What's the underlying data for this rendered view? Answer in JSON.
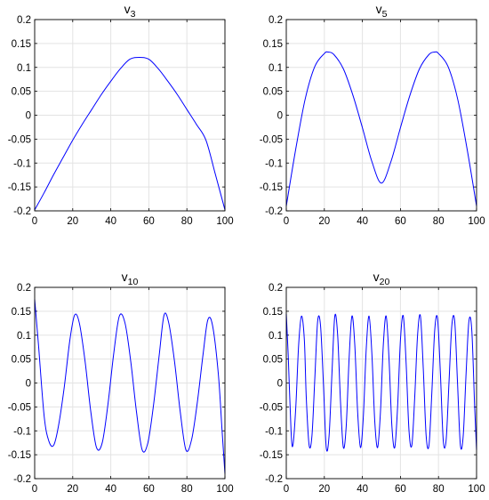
{
  "chart_data": [
    {
      "type": "line",
      "title": "v",
      "title_subscript": "3",
      "xlim": [
        0,
        100
      ],
      "ylim": [
        -0.2,
        0.2
      ],
      "x_ticks": [
        "0",
        "20",
        "40",
        "60",
        "80",
        "100"
      ],
      "y_ticks": [
        "-0.2",
        "-0.15",
        "-0.1",
        "-0.05",
        "0",
        "0.05",
        "0.1",
        "0.15",
        "0.2"
      ],
      "grid": true,
      "line_color": "#0000ff",
      "series": [
        {
          "x": [
            0,
            5,
            10,
            15,
            20,
            25,
            30,
            35,
            40,
            45,
            50,
            55,
            60,
            65,
            70,
            75,
            80,
            85,
            90,
            95,
            100
          ],
          "y": [
            -0.198,
            -0.162,
            -0.124,
            -0.088,
            -0.052,
            -0.019,
            0.012,
            0.043,
            0.071,
            0.097,
            0.117,
            0.121,
            0.117,
            0.097,
            0.071,
            0.043,
            0.012,
            -0.019,
            -0.052,
            -0.124,
            -0.198
          ]
        }
      ]
    },
    {
      "type": "line",
      "title": "v",
      "title_subscript": "5",
      "xlim": [
        0,
        100
      ],
      "ylim": [
        -0.2,
        0.2
      ],
      "x_ticks": [
        "0",
        "20",
        "40",
        "60",
        "80",
        "100"
      ],
      "y_ticks": [
        "-0.2",
        "-0.15",
        "-0.1",
        "-0.05",
        "0",
        "0.05",
        "0.1",
        "0.15",
        "0.2"
      ],
      "grid": true,
      "line_color": "#0000ff",
      "series": [
        {
          "x": [
            0,
            5,
            10,
            15,
            20,
            22,
            25,
            30,
            35,
            40,
            45,
            50,
            55,
            60,
            65,
            70,
            75,
            78,
            80,
            85,
            90,
            95,
            100
          ],
          "y": [
            -0.19,
            -0.07,
            0.035,
            0.102,
            0.129,
            0.132,
            0.127,
            0.097,
            0.042,
            -0.026,
            -0.097,
            -0.142,
            -0.097,
            -0.026,
            0.042,
            0.097,
            0.127,
            0.132,
            0.129,
            0.102,
            0.035,
            -0.07,
            -0.19
          ]
        }
      ]
    },
    {
      "type": "line",
      "title": "v",
      "title_subscript": "10",
      "xlim": [
        0,
        100
      ],
      "ylim": [
        -0.2,
        0.2
      ],
      "x_ticks": [
        "0",
        "20",
        "40",
        "60",
        "80",
        "100"
      ],
      "y_ticks": [
        "-0.2",
        "-0.15",
        "-0.1",
        "-0.05",
        "0",
        "0.05",
        "0.1",
        "0.15",
        "0.2"
      ],
      "grid": true,
      "line_color": "#0000ff",
      "series": [
        {
          "x": [
            0,
            2,
            5,
            7.5,
            10,
            12.5,
            15.5,
            18.5,
            21,
            23.5,
            26.5,
            29.5,
            32.5,
            35.5,
            38.5,
            41.5,
            44.5,
            47.5,
            50.5,
            53.5,
            56.5,
            59.5,
            62.5,
            65.5,
            68,
            70.5,
            73.5,
            76.5,
            79.5,
            82.5,
            85.5,
            88.5,
            91,
            93.5,
            96.5,
            98.5,
            100
          ],
          "y": [
            0.175,
            0.08,
            -0.07,
            -0.122,
            -0.13,
            -0.09,
            -0.01,
            0.09,
            0.142,
            0.125,
            0.045,
            -0.06,
            -0.135,
            -0.125,
            -0.045,
            0.06,
            0.14,
            0.125,
            0.045,
            -0.06,
            -0.14,
            -0.125,
            -0.045,
            0.06,
            0.142,
            0.125,
            0.045,
            -0.06,
            -0.14,
            -0.118,
            -0.04,
            0.06,
            0.132,
            0.12,
            0.02,
            -0.1,
            -0.19
          ]
        }
      ]
    },
    {
      "type": "line",
      "title": "v",
      "title_subscript": "20",
      "xlim": [
        0,
        100
      ],
      "ylim": [
        -0.2,
        0.2
      ],
      "x_ticks": [
        "0",
        "20",
        "40",
        "60",
        "80",
        "100"
      ],
      "y_ticks": [
        "-0.2",
        "-0.15",
        "-0.1",
        "-0.05",
        "0",
        "0.05",
        "0.1",
        "0.15",
        "0.2"
      ],
      "grid": true,
      "line_color": "#0000ff",
      "series": [
        {
          "x": [
            0,
            1,
            2.5,
            3.5,
            5,
            6.5,
            8,
            9.5,
            10.5,
            12,
            13.5,
            15,
            16.5,
            18,
            19.5,
            21,
            22.5,
            24,
            25.5,
            27,
            28.5,
            30,
            31.5,
            33,
            34.5,
            36,
            37.5,
            39,
            40.5,
            42,
            43.5,
            45,
            46.5,
            48,
            49.5,
            51,
            52.5,
            54,
            55.5,
            57,
            58.5,
            60,
            61.5,
            63,
            64.5,
            66,
            67.5,
            69,
            70.5,
            72,
            73.5,
            75,
            76.5,
            78,
            79.5,
            81,
            82.5,
            84,
            85.5,
            87,
            88.5,
            90,
            91.5,
            93,
            94.5,
            96,
            97.5,
            99,
            100
          ],
          "y": [
            0.145,
            0.06,
            -0.1,
            -0.13,
            -0.05,
            0.08,
            0.14,
            0.09,
            -0.03,
            -0.13,
            -0.11,
            0.01,
            0.13,
            0.12,
            0.0,
            -0.135,
            -0.11,
            0.02,
            0.14,
            0.1,
            -0.04,
            -0.135,
            -0.09,
            0.05,
            0.14,
            0.08,
            -0.06,
            -0.135,
            -0.07,
            0.07,
            0.14,
            0.06,
            -0.08,
            -0.135,
            -0.06,
            0.08,
            0.14,
            0.05,
            -0.09,
            -0.135,
            -0.05,
            0.09,
            0.14,
            0.04,
            -0.1,
            -0.13,
            -0.03,
            0.1,
            0.14,
            0.03,
            -0.11,
            -0.13,
            -0.02,
            0.11,
            0.135,
            0.02,
            -0.12,
            -0.12,
            0.0,
            0.12,
            0.13,
            0.0,
            -0.13,
            -0.11,
            0.02,
            0.13,
            0.11,
            -0.05,
            -0.14
          ]
        }
      ]
    }
  ]
}
